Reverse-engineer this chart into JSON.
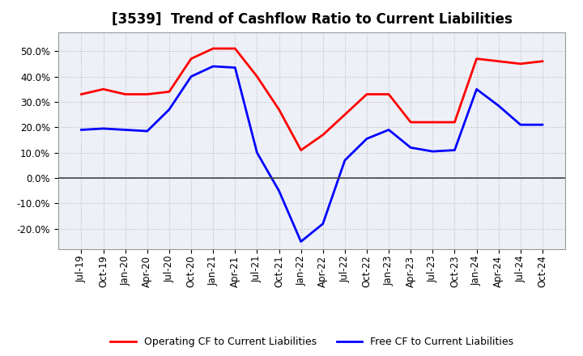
{
  "title": "[3539]  Trend of Cashflow Ratio to Current Liabilities",
  "x_labels": [
    "Jul-19",
    "Oct-19",
    "Jan-20",
    "Apr-20",
    "Jul-20",
    "Oct-20",
    "Jan-21",
    "Apr-21",
    "Jul-21",
    "Oct-21",
    "Jan-22",
    "Apr-22",
    "Jul-22",
    "Oct-22",
    "Jan-23",
    "Apr-23",
    "Jul-23",
    "Oct-23",
    "Jan-24",
    "Apr-24",
    "Jul-24",
    "Oct-24"
  ],
  "operating_cf": [
    0.33,
    0.35,
    0.33,
    0.33,
    0.34,
    0.47,
    0.51,
    0.51,
    0.4,
    0.27,
    0.11,
    0.17,
    0.25,
    0.33,
    0.33,
    0.22,
    0.22,
    0.22,
    0.47,
    0.46,
    0.45,
    0.46
  ],
  "free_cf": [
    0.19,
    0.195,
    0.19,
    0.185,
    0.27,
    0.4,
    0.44,
    0.435,
    0.1,
    -0.05,
    -0.25,
    -0.18,
    0.07,
    0.155,
    0.19,
    0.12,
    0.105,
    0.11,
    0.35,
    0.285,
    0.21,
    0.21
  ],
  "operating_color": "#ff0000",
  "free_color": "#0000ff",
  "background_color": "#ffffff",
  "plot_bg_color": "#eef0f8",
  "grid_color": "#bbbbbb",
  "ylim": [
    -0.28,
    0.575
  ],
  "yticks": [
    -0.2,
    -0.1,
    0.0,
    0.1,
    0.2,
    0.3,
    0.4,
    0.5
  ],
  "legend_operating": "Operating CF to Current Liabilities",
  "legend_free": "Free CF to Current Liabilities",
  "title_fontsize": 12,
  "tick_fontsize": 8.5
}
